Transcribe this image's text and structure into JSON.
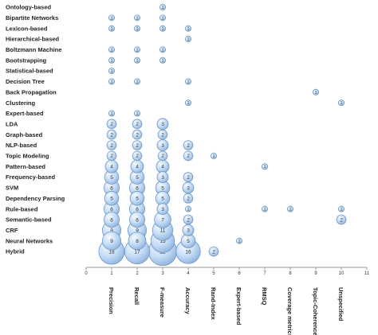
{
  "chart_data": {
    "type": "bubble",
    "title": "",
    "xlabel": "",
    "ylabel": "",
    "xlim": [
      0,
      11
    ],
    "x_ticks": [
      0,
      1,
      2,
      3,
      4,
      5,
      6,
      7,
      8,
      9,
      10,
      11
    ],
    "x_categories": [
      "Precision",
      "Recall",
      "F-measure",
      "Accuracy",
      "Rand-Index",
      "Expert-based",
      "RMSQ",
      "Coverage metrics",
      "Topic-Coherence",
      "Unspecified"
    ],
    "y_categories": [
      "Ontology-based",
      "Bipartite Networks",
      "Lexicon-based",
      "Hierarchical-based",
      "Boltzmann Machine",
      "Bootstrapping",
      "Statistical-based",
      "Decision Tree",
      "Back Propagation",
      "Clustering",
      "Expert-based",
      "LDA",
      "Graph-based",
      "NLP-based",
      "Topic Modeling",
      "Pattern-based",
      "Frequency-based",
      "SVM",
      "Dependency Parsing",
      "Rule-based",
      "Semantic-based",
      "CRF",
      "Neural Networks",
      "Hybrid"
    ],
    "points": [
      {
        "y": "Ontology-based",
        "x": 3,
        "value": 1
      },
      {
        "y": "Bipartite Networks",
        "x": 1,
        "value": 1
      },
      {
        "y": "Bipartite Networks",
        "x": 2,
        "value": 1
      },
      {
        "y": "Bipartite Networks",
        "x": 3,
        "value": 1
      },
      {
        "y": "Lexicon-based",
        "x": 1,
        "value": 1
      },
      {
        "y": "Lexicon-based",
        "x": 2,
        "value": 1
      },
      {
        "y": "Lexicon-based",
        "x": 3,
        "value": 1
      },
      {
        "y": "Lexicon-based",
        "x": 4,
        "value": 1
      },
      {
        "y": "Hierarchical-based",
        "x": 4,
        "value": 1
      },
      {
        "y": "Boltzmann Machine",
        "x": 1,
        "value": 1
      },
      {
        "y": "Boltzmann Machine",
        "x": 2,
        "value": 1
      },
      {
        "y": "Boltzmann Machine",
        "x": 3,
        "value": 1
      },
      {
        "y": "Bootstrapping",
        "x": 1,
        "value": 1
      },
      {
        "y": "Bootstrapping",
        "x": 2,
        "value": 1
      },
      {
        "y": "Bootstrapping",
        "x": 3,
        "value": 1
      },
      {
        "y": "Statistical-based",
        "x": 1,
        "value": 1
      },
      {
        "y": "Decision Tree",
        "x": 1,
        "value": 1
      },
      {
        "y": "Decision Tree",
        "x": 2,
        "value": 1
      },
      {
        "y": "Decision Tree",
        "x": 4,
        "value": 1
      },
      {
        "y": "Back Propagation",
        "x": 9,
        "value": 1
      },
      {
        "y": "Clustering",
        "x": 4,
        "value": 1
      },
      {
        "y": "Clustering",
        "x": 10,
        "value": 1
      },
      {
        "y": "Expert-based",
        "x": 1,
        "value": 1
      },
      {
        "y": "Expert-based",
        "x": 2,
        "value": 1
      },
      {
        "y": "LDA",
        "x": 1,
        "value": 2
      },
      {
        "y": "LDA",
        "x": 2,
        "value": 2
      },
      {
        "y": "LDA",
        "x": 3,
        "value": 3
      },
      {
        "y": "Graph-based",
        "x": 1,
        "value": 2
      },
      {
        "y": "Graph-based",
        "x": 2,
        "value": 2
      },
      {
        "y": "Graph-based",
        "x": 3,
        "value": 2
      },
      {
        "y": "NLP-based",
        "x": 1,
        "value": 2
      },
      {
        "y": "NLP-based",
        "x": 2,
        "value": 2
      },
      {
        "y": "NLP-based",
        "x": 3,
        "value": 3
      },
      {
        "y": "NLP-based",
        "x": 4,
        "value": 2
      },
      {
        "y": "Topic Modeling",
        "x": 1,
        "value": 2
      },
      {
        "y": "Topic Modeling",
        "x": 2,
        "value": 2
      },
      {
        "y": "Topic Modeling",
        "x": 3,
        "value": 2
      },
      {
        "y": "Topic Modeling",
        "x": 4,
        "value": 2
      },
      {
        "y": "Topic Modeling",
        "x": 5,
        "value": 1
      },
      {
        "y": "Pattern-based",
        "x": 1,
        "value": 4
      },
      {
        "y": "Pattern-based",
        "x": 2,
        "value": 4
      },
      {
        "y": "Pattern-based",
        "x": 3,
        "value": 4
      },
      {
        "y": "Pattern-based",
        "x": 7,
        "value": 1
      },
      {
        "y": "Frequency-based",
        "x": 1,
        "value": 5
      },
      {
        "y": "Frequency-based",
        "x": 2,
        "value": 5
      },
      {
        "y": "Frequency-based",
        "x": 3,
        "value": 3
      },
      {
        "y": "Frequency-based",
        "x": 4,
        "value": 2
      },
      {
        "y": "SVM",
        "x": 1,
        "value": 6
      },
      {
        "y": "SVM",
        "x": 2,
        "value": 6
      },
      {
        "y": "SVM",
        "x": 3,
        "value": 5
      },
      {
        "y": "SVM",
        "x": 4,
        "value": 3
      },
      {
        "y": "Dependency Parsing",
        "x": 1,
        "value": 5
      },
      {
        "y": "Dependency Parsing",
        "x": 2,
        "value": 5
      },
      {
        "y": "Dependency Parsing",
        "x": 3,
        "value": 5
      },
      {
        "y": "Dependency Parsing",
        "x": 4,
        "value": 2
      },
      {
        "y": "Rule-based",
        "x": 1,
        "value": 6
      },
      {
        "y": "Rule-based",
        "x": 2,
        "value": 6
      },
      {
        "y": "Rule-based",
        "x": 3,
        "value": 3
      },
      {
        "y": "Rule-based",
        "x": 4,
        "value": 1
      },
      {
        "y": "Rule-based",
        "x": 7,
        "value": 1
      },
      {
        "y": "Rule-based",
        "x": 8,
        "value": 1
      },
      {
        "y": "Rule-based",
        "x": 10,
        "value": 1
      },
      {
        "y": "Semantic-based",
        "x": 1,
        "value": 6
      },
      {
        "y": "Semantic-based",
        "x": 2,
        "value": 6
      },
      {
        "y": "Semantic-based",
        "x": 3,
        "value": 7
      },
      {
        "y": "Semantic-based",
        "x": 4,
        "value": 2
      },
      {
        "y": "Semantic-based",
        "x": 10,
        "value": 2
      },
      {
        "y": "CRF",
        "x": 1,
        "value": 9
      },
      {
        "y": "CRF",
        "x": 2,
        "value": 9
      },
      {
        "y": "CRF",
        "x": 3,
        "value": 11
      },
      {
        "y": "CRF",
        "x": 4,
        "value": 3
      },
      {
        "y": "Neural Networks",
        "x": 1,
        "value": 9
      },
      {
        "y": "Neural Networks",
        "x": 2,
        "value": 8
      },
      {
        "y": "Neural Networks",
        "x": 3,
        "value": 15
      },
      {
        "y": "Neural Networks",
        "x": 4,
        "value": 5
      },
      {
        "y": "Neural Networks",
        "x": 6,
        "value": 1
      },
      {
        "y": "Hybrid",
        "x": 1,
        "value": 18
      },
      {
        "y": "Hybrid",
        "x": 2,
        "value": 17
      },
      {
        "y": "Hybrid",
        "x": 3,
        "value": 22
      },
      {
        "y": "Hybrid",
        "x": 4,
        "value": 16
      },
      {
        "y": "Hybrid",
        "x": 5,
        "value": 2
      }
    ],
    "grid": false,
    "legend": "none",
    "colors": {
      "bubble_fill": "#bcd6f2",
      "bubble_edge": "#6f97c8",
      "axis": "#888888",
      "text": "#222222"
    }
  }
}
